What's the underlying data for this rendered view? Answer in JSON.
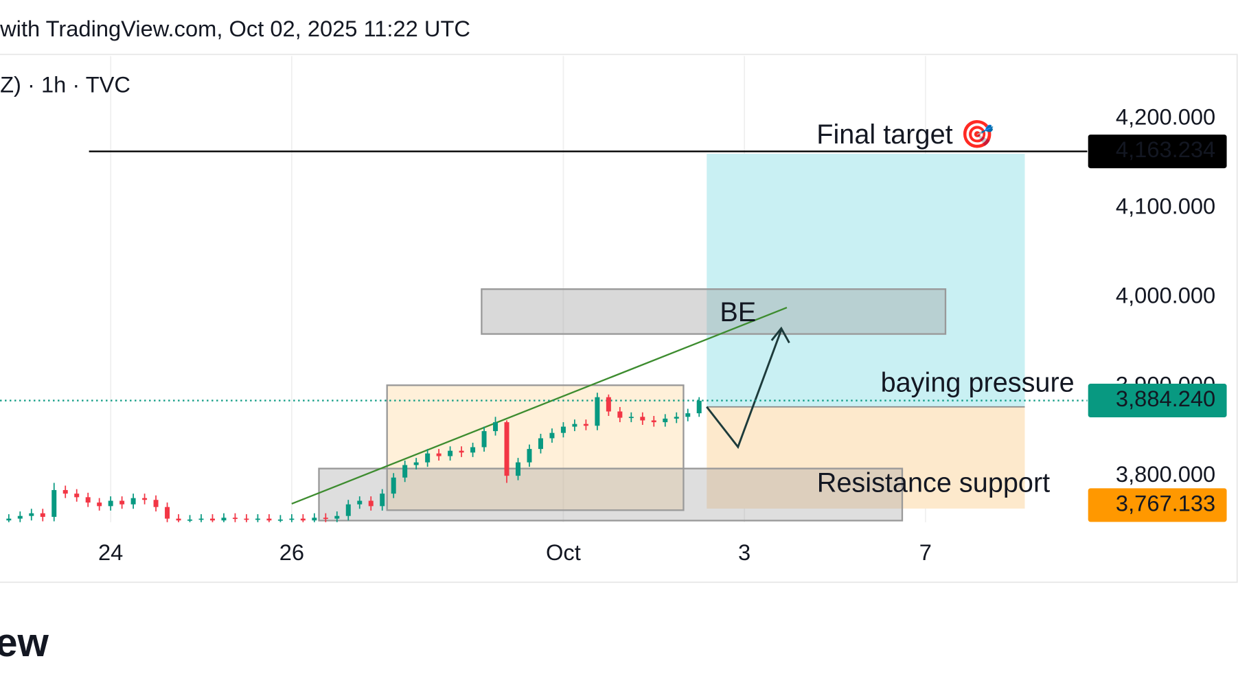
{
  "chart_data": {
    "type": "candlestick",
    "title": "with TradingView.com, Oct 02, 2025 11:22 UTC",
    "subtitle": "Z) · 1h · TVC",
    "logo": "ew",
    "categories": [
      null,
      null,
      null,
      null,
      null,
      null,
      null,
      null,
      null,
      "24",
      null,
      null,
      null,
      null,
      null,
      null,
      null,
      null,
      null,
      null,
      null,
      null,
      null,
      null,
      null,
      "26",
      null,
      null,
      null,
      null,
      null,
      null,
      null,
      null,
      null,
      null,
      null,
      null,
      null,
      null,
      null,
      null,
      null,
      null,
      null,
      null,
      null,
      null,
      null,
      "Oct",
      null,
      null,
      null,
      null,
      null,
      null,
      null,
      null,
      null,
      null,
      null,
      null,
      null,
      null,
      null,
      "3",
      null,
      null,
      null,
      null,
      null,
      null,
      null,
      null,
      null,
      null,
      null,
      null,
      null,
      null,
      null,
      "7",
      null,
      null,
      null,
      null,
      null,
      null,
      null,
      null,
      null,
      null,
      null,
      null,
      null,
      null
    ],
    "open": [
      3750,
      3752,
      3755,
      3758,
      3754,
      3784,
      3780,
      3776,
      3770,
      3766,
      3772,
      3768,
      3775,
      3773,
      3765,
      3752,
      3750,
      3751,
      3752,
      3750,
      3753,
      3752,
      3751,
      3752,
      3750,
      3751,
      3752,
      3750,
      3753,
      3752,
      3755,
      3768,
      3772,
      3766,
      3780,
      3798,
      3812,
      3815,
      3825,
      3822,
      3828,
      3826,
      3832,
      3850,
      3860,
      3800,
      3815,
      3830,
      3842,
      3848,
      3855,
      3858,
      3856,
      3888,
      3872,
      3865,
      3866,
      3862,
      3860,
      3864,
      3866,
      3870,
      null,
      null,
      null,
      null,
      null,
      null,
      null,
      null,
      null,
      null,
      null,
      null,
      null,
      null,
      null,
      null,
      null,
      null,
      null,
      null,
      null,
      null,
      null,
      null,
      null,
      null,
      null,
      null,
      null,
      null,
      null,
      null,
      null,
      null
    ],
    "high": [
      3757,
      3760,
      3763,
      3763,
      3792,
      3789,
      3785,
      3781,
      3775,
      3777,
      3777,
      3780,
      3780,
      3778,
      3770,
      3757,
      3756,
      3757,
      3757,
      3758,
      3758,
      3757,
      3757,
      3757,
      3756,
      3757,
      3757,
      3758,
      3758,
      3760,
      3773,
      3777,
      3777,
      3785,
      3803,
      3817,
      3820,
      3830,
      3830,
      3833,
      3833,
      3837,
      3855,
      3866,
      3862,
      3820,
      3835,
      3847,
      3853,
      3860,
      3863,
      3863,
      3893,
      3891,
      3877,
      3871,
      3871,
      3867,
      3869,
      3871,
      3875,
      3888,
      null,
      null,
      null,
      null,
      null,
      null,
      null,
      null,
      null,
      null,
      null,
      null,
      null,
      null,
      null,
      null,
      null,
      null,
      null,
      null,
      null,
      null,
      null,
      null,
      null,
      null,
      null,
      null,
      null,
      null,
      null,
      null,
      null,
      null
    ],
    "low": [
      3745,
      3747,
      3750,
      3749,
      3749,
      3775,
      3771,
      3765,
      3761,
      3761,
      3763,
      3763,
      3768,
      3760,
      3747,
      3745,
      3745,
      3746,
      3745,
      3745,
      3747,
      3746,
      3746,
      3745,
      3745,
      3746,
      3745,
      3745,
      3747,
      3747,
      3750,
      3763,
      3761,
      3761,
      3775,
      3793,
      3807,
      3810,
      3817,
      3817,
      3821,
      3821,
      3827,
      3845,
      3792,
      3795,
      3810,
      3825,
      3837,
      3843,
      3850,
      3851,
      3851,
      3867,
      3860,
      3860,
      3857,
      3855,
      3855,
      3859,
      3861,
      3866,
      null,
      null,
      null,
      null,
      null,
      null,
      null,
      null,
      null,
      null,
      null,
      null,
      null,
      null,
      null,
      null,
      null,
      null,
      null,
      null,
      null,
      null,
      null,
      null,
      null,
      null,
      null,
      null,
      null,
      null,
      null,
      null,
      null,
      null
    ],
    "close": [
      3752,
      3755,
      3758,
      3754,
      3784,
      3780,
      3776,
      3770,
      3766,
      3772,
      3768,
      3775,
      3773,
      3765,
      3752,
      3750,
      3751,
      3752,
      3750,
      3753,
      3752,
      3751,
      3752,
      3750,
      3751,
      3752,
      3750,
      3753,
      3752,
      3755,
      3768,
      3772,
      3766,
      3780,
      3798,
      3812,
      3815,
      3825,
      3822,
      3828,
      3826,
      3832,
      3850,
      3860,
      3800,
      3815,
      3830,
      3842,
      3848,
      3855,
      3858,
      3856,
      3888,
      3872,
      3865,
      3866,
      3862,
      3860,
      3864,
      3866,
      3870,
      3884,
      null,
      null,
      null,
      null,
      null,
      null,
      null,
      null,
      null,
      null,
      null,
      null,
      null,
      null,
      null,
      null,
      null,
      null,
      null,
      null,
      null,
      null,
      null,
      null,
      null,
      null,
      null,
      null,
      null,
      null,
      null,
      null,
      null,
      null
    ],
    "up_color": "#089981",
    "down_color": "#f23645",
    "ylim": [
      3748,
      4270
    ],
    "yticks": [
      {
        "value": 3800,
        "label": "3,800.000"
      },
      {
        "value": 3900,
        "label": "3,900.000"
      },
      {
        "value": 4000,
        "label": "4,000.000"
      },
      {
        "value": 4100,
        "label": "4,100.000"
      },
      {
        "value": 4200,
        "label": "4,200.000"
      }
    ],
    "grid": true,
    "price_lines": [
      {
        "value": 4163.234,
        "label": "4,163.234",
        "color": "#000000",
        "style": "solid"
      },
      {
        "value": 3884.24,
        "label": "3,884.240",
        "color": "#089981",
        "style": "dotted"
      },
      {
        "value": 3767.133,
        "label": "3,767.133",
        "color": "#ff9800",
        "style": "none"
      }
    ],
    "annotations": [
      {
        "text": "Final target 🎯",
        "color": "#ef8a2c"
      },
      {
        "text": "BE",
        "color": "#131722"
      },
      {
        "text": "baying pressure",
        "color": "#2f5fd8"
      },
      {
        "text": "Resistance support",
        "color": "#e0306a"
      }
    ]
  }
}
